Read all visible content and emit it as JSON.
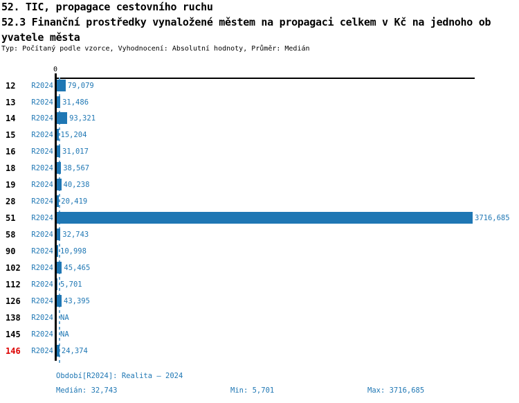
{
  "header": {
    "title_line1": "52. TIC, propagace cestovního ruchu",
    "title_line2": "52.3 Finanční prostředky vynaložené městem na propagaci celkem v Kč na jednoho ob",
    "title_line3": "yvatele města",
    "subtitle": "Typ: Počítaný podle vzorce, Vyhodnocení: Absolutní hodnoty, Průměr: Medián"
  },
  "chart_data": {
    "type": "bar",
    "orientation": "horizontal",
    "x_axis": {
      "tick_labels": [
        "0"
      ],
      "xlim": [
        0,
        3747
      ]
    },
    "row_period_label": "R2024",
    "categories": [
      "12",
      "13",
      "14",
      "15",
      "16",
      "18",
      "19",
      "28",
      "51",
      "58",
      "90",
      "102",
      "112",
      "126",
      "138",
      "145",
      "146"
    ],
    "values": [
      79.079,
      31.486,
      93.321,
      15.204,
      31.017,
      38.567,
      40.238,
      20.419,
      3716.685,
      32.743,
      10.998,
      45.465,
      5.701,
      43.395,
      null,
      null,
      24.374
    ],
    "value_labels": [
      "79,079",
      "31,486",
      "93,321",
      "15,204",
      "31,017",
      "38,567",
      "40,238",
      "20,419",
      "3716,685",
      "32,743",
      "10,998",
      "45,465",
      "5,701",
      "43,395",
      "NA",
      "NA",
      "24,374"
    ],
    "na_text": "NA",
    "highlight_category": "146",
    "median_reference_line": 32.743,
    "stats": {
      "median": 32.743,
      "min": 5.701,
      "max": 3716.685
    }
  },
  "footer": {
    "period_info": "Období[R2024]: Realita – 2024",
    "median_label": "Medián: 32,743",
    "min_label": "Min: 5,701",
    "max_label": "Max: 3716,685"
  },
  "colors": {
    "bar": "#1f77b4",
    "blue_text": "#1f77b4",
    "median_line": "#69a8d4",
    "highlight_red": "#dd0000",
    "axis": "#000000"
  }
}
